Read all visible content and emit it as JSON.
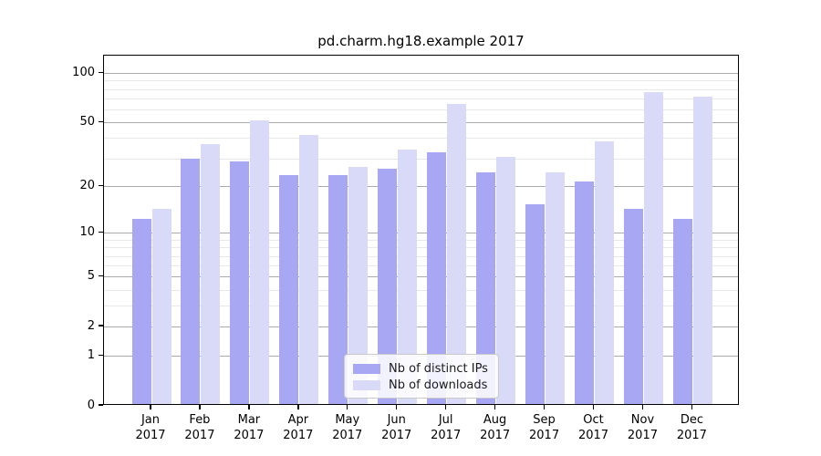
{
  "title": "pd.charm.hg18.example 2017",
  "colors": {
    "ips_bar": "#a7a7f3",
    "downloads_bar": "#d9d9f8",
    "grid_major": "#ababab",
    "grid_minor": "#e8e8e8",
    "spine": "#000000"
  },
  "legend": {
    "items": [
      {
        "label": "Nb of distinct IPs",
        "series": "ips"
      },
      {
        "label": "Nb of downloads",
        "series": "downloads"
      }
    ]
  },
  "chart_data": {
    "type": "bar",
    "title": "pd.charm.hg18.example 2017",
    "categories": [
      "Jan 2017",
      "Feb 2017",
      "Mar 2017",
      "Apr 2017",
      "May 2017",
      "Jun 2017",
      "Jul 2017",
      "Aug 2017",
      "Sep 2017",
      "Oct 2017",
      "Nov 2017",
      "Dec 2017"
    ],
    "months": [
      "Jan",
      "Feb",
      "Mar",
      "Apr",
      "May",
      "Jun",
      "Jul",
      "Aug",
      "Sep",
      "Oct",
      "Nov",
      "Dec"
    ],
    "year_label": "2017",
    "series": [
      {
        "name": "Nb of distinct IPs",
        "color": "#a7a7f3",
        "values": [
          12,
          29,
          28,
          23,
          23,
          25,
          32,
          24,
          15,
          21,
          14,
          12
        ]
      },
      {
        "name": "Nb of downloads",
        "color": "#d9d9f8",
        "values": [
          14,
          36,
          50,
          41,
          26,
          33,
          63,
          30,
          24,
          37,
          75,
          70
        ]
      }
    ],
    "xlabel": "",
    "ylabel": "",
    "yscale": "log(1+x)",
    "ylim": [
      0,
      128
    ],
    "yticks_major": [
      0,
      1,
      2,
      5,
      10,
      20,
      50,
      100
    ],
    "yticks_minor": [
      3,
      4,
      6,
      7,
      8,
      9,
      30,
      40,
      60,
      70,
      80,
      90
    ],
    "grid": true,
    "legend_position": "inside lower center"
  }
}
